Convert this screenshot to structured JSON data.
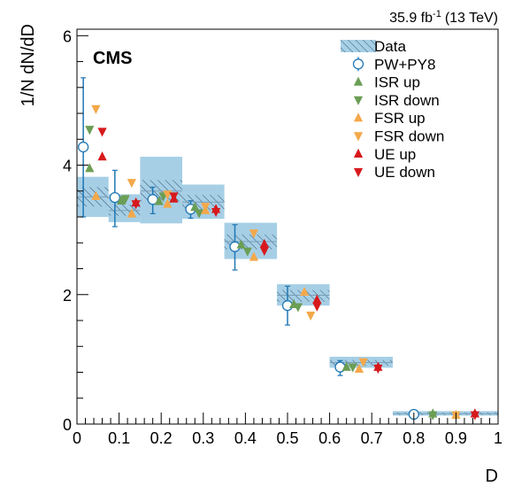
{
  "chart_data": {
    "type": "scatter",
    "title": "",
    "lumi": "35.9 fb",
    "lumi_exp": "-1",
    "energy": "(13 TeV)",
    "experiment": "CMS",
    "xlabel": "D",
    "ylabel": "1/N dN/dD",
    "xlim": [
      0,
      1
    ],
    "ylim": [
      0,
      6.1
    ],
    "x_ticks": [
      0,
      0.1,
      0.2,
      0.3,
      0.4,
      0.5,
      0.6,
      0.7,
      0.8,
      0.9,
      1
    ],
    "x_tick_labels": [
      "0",
      "0.1",
      "0.2",
      "0.3",
      "0.4",
      "0.5",
      "0.6",
      "0.7",
      "0.8",
      "0.9",
      "1"
    ],
    "y_ticks": [
      0,
      2,
      4,
      6
    ],
    "y_tick_labels": [
      "0",
      "2",
      "4",
      "6"
    ],
    "bins": [
      [
        0,
        0.075
      ],
      [
        0.075,
        0.15
      ],
      [
        0.15,
        0.25
      ],
      [
        0.25,
        0.35
      ],
      [
        0.35,
        0.475
      ],
      [
        0.475,
        0.6
      ],
      [
        0.6,
        0.75
      ],
      [
        0.75,
        1.0
      ]
    ],
    "legend_position": "top-right",
    "series": [
      {
        "name": "Data",
        "kind": "band",
        "color": "#a6cfe6",
        "values": [
          3.51,
          3.3,
          3.6,
          3.43,
          2.82,
          1.99,
          0.95,
          0.16
        ],
        "band_low": [
          3.2,
          3.12,
          3.1,
          3.17,
          2.55,
          1.83,
          0.87,
          0.13
        ],
        "band_high": [
          3.82,
          3.55,
          4.13,
          3.7,
          3.11,
          2.16,
          1.04,
          0.2
        ],
        "hatch_low": [
          3.36,
          3.22,
          3.44,
          3.3,
          2.7,
          1.89,
          0.9,
          0.14
        ],
        "hatch_high": [
          3.66,
          3.39,
          3.77,
          3.54,
          2.93,
          2.07,
          0.99,
          0.18
        ]
      },
      {
        "name": "PW+PY8",
        "kind": "open-circle",
        "color": "#1f77b4",
        "x": [
          0.015,
          0.09,
          0.18,
          0.27,
          0.375,
          0.5,
          0.625,
          0.8
        ],
        "values": [
          4.28,
          3.5,
          3.47,
          3.32,
          2.74,
          1.83,
          0.88,
          0.15
        ],
        "err_low": [
          3.2,
          3.05,
          3.25,
          3.18,
          2.38,
          1.53,
          0.75,
          0.14
        ],
        "err_high": [
          5.35,
          3.92,
          3.66,
          3.45,
          3.08,
          2.13,
          0.98,
          0.17
        ]
      },
      {
        "name": "ISR up",
        "kind": "triangle-up",
        "color": "#6b9e55",
        "x": [
          0.03,
          0.105,
          0.195,
          0.28,
          0.39,
          0.515,
          0.64,
          0.845
        ],
        "values": [
          3.95,
          3.45,
          3.44,
          3.35,
          2.77,
          1.85,
          0.88,
          0.16
        ]
      },
      {
        "name": "ISR down",
        "kind": "triangle-down",
        "color": "#6b9e55",
        "x": [
          0.03,
          0.115,
          0.205,
          0.29,
          0.405,
          0.525,
          0.655,
          0.845
        ],
        "values": [
          4.55,
          3.48,
          3.52,
          3.26,
          2.67,
          1.81,
          0.88,
          0.14
        ]
      },
      {
        "name": "FSR up",
        "kind": "triangle-up",
        "color": "#f4a84a",
        "x": [
          0.045,
          0.13,
          0.215,
          0.305,
          0.42,
          0.54,
          0.67,
          0.9
        ],
        "values": [
          3.52,
          3.25,
          3.4,
          3.3,
          2.58,
          2.04,
          0.85,
          0.14
        ]
      },
      {
        "name": "FSR down",
        "kind": "triangle-down",
        "color": "#f4a84a",
        "x": [
          0.045,
          0.13,
          0.215,
          0.305,
          0.42,
          0.555,
          0.68,
          0.9
        ],
        "values": [
          4.87,
          3.73,
          3.55,
          3.36,
          2.95,
          1.68,
          0.96,
          0.14
        ]
      },
      {
        "name": "UE up",
        "kind": "triangle-up",
        "color": "#d7191c",
        "x": [
          0.06,
          0.14,
          0.23,
          0.33,
          0.445,
          0.57,
          0.715,
          0.945
        ],
        "values": [
          4.13,
          3.42,
          3.48,
          3.32,
          2.78,
          1.92,
          0.88,
          0.16
        ]
      },
      {
        "name": "UE down",
        "kind": "triangle-down",
        "color": "#d7191c",
        "x": [
          0.06,
          0.14,
          0.23,
          0.33,
          0.445,
          0.57,
          0.715,
          0.945
        ],
        "values": [
          4.52,
          3.4,
          3.52,
          3.28,
          2.68,
          1.82,
          0.86,
          0.14
        ]
      }
    ]
  }
}
